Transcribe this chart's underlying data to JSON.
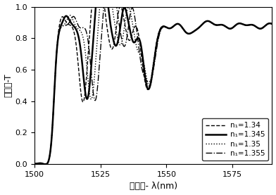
{
  "xlabel": "光波长- λ(nm)",
  "ylabel": "透射率-T",
  "xlim": [
    1500,
    1590
  ],
  "ylim": [
    0,
    1.0
  ],
  "xticks": [
    1500,
    1525,
    1550,
    1575
  ],
  "yticks": [
    0,
    0.2,
    0.4,
    0.6,
    0.8,
    1
  ],
  "n1_values": [
    1.34,
    1.345,
    1.35,
    1.355
  ],
  "linestyles": [
    "--",
    "-",
    ":",
    "-."
  ],
  "linewidths": [
    1.0,
    1.8,
    1.0,
    1.0
  ],
  "labels": [
    "n₁=1.34",
    "n₁=1.345",
    "n₁=1.35",
    "n₁=1.355"
  ],
  "color": "#000000",
  "background_color": "#ffffff",
  "legend_loc": "lower right"
}
